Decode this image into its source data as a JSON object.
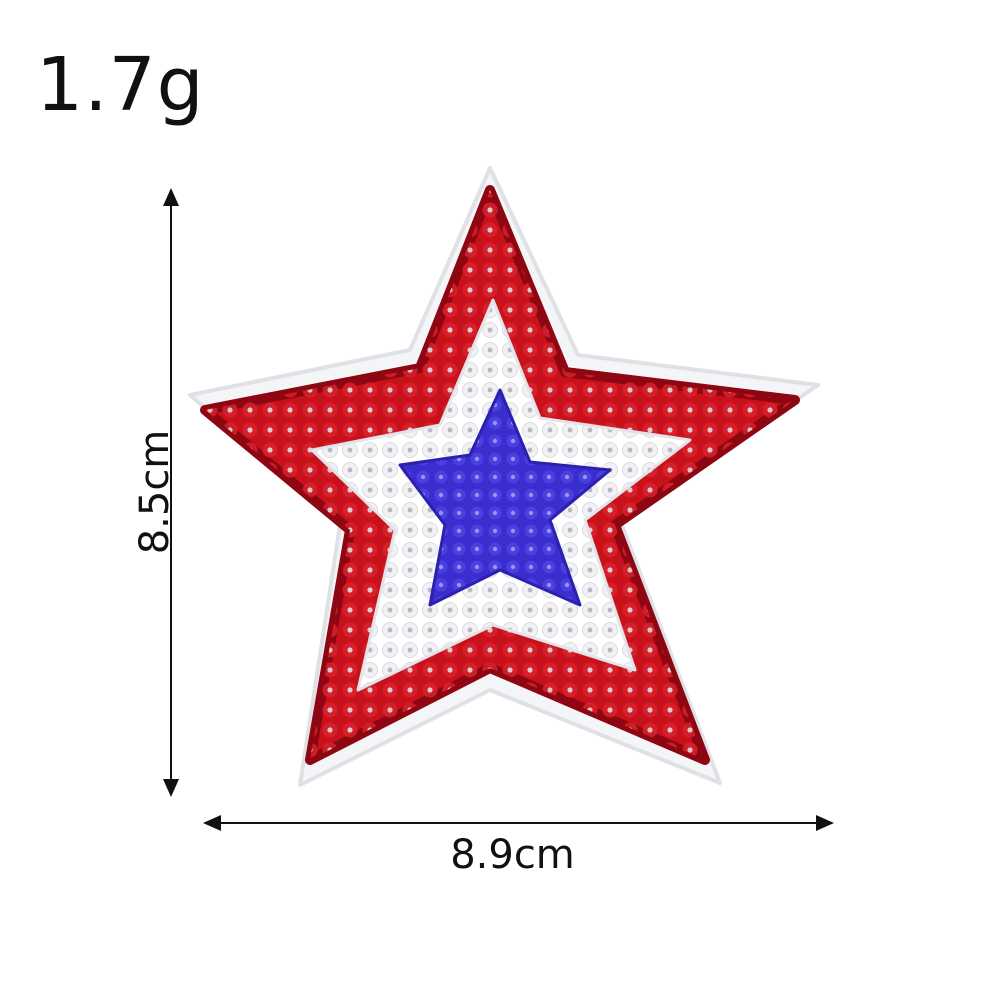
{
  "product": {
    "weight_label": "1.7g",
    "height_label": "8.5cm",
    "width_label": "8.9cm"
  },
  "colors": {
    "felt_backing": "#f4f5f7",
    "outer_sequin": "#c8111b",
    "dark_sequin": "#8e0612",
    "white_sequin": "#ffffff",
    "center_sequin": "#3528c8",
    "dimension_lines": "#111111"
  },
  "icons": [
    "star-patch",
    "dimension-arrow"
  ]
}
